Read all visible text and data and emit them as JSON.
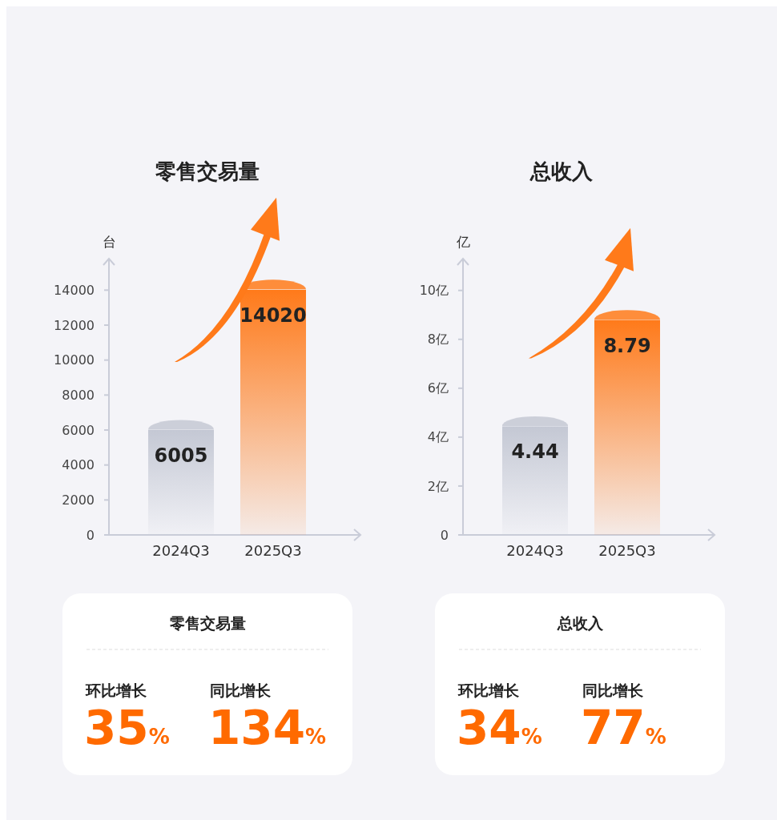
{
  "chart_data": [
    {
      "type": "bar",
      "title": "零售交易量",
      "ylabel": "台",
      "categories": [
        "2024Q3",
        "2025Q3"
      ],
      "values": [
        6005,
        14020
      ],
      "colors": [
        "#c4c8d4",
        "#ff7a1a"
      ],
      "ylim": [
        0,
        15800
      ],
      "yticks": [
        0,
        2000,
        4000,
        6000,
        8000,
        10000,
        12000,
        14000
      ],
      "data_labels": true
    },
    {
      "type": "bar",
      "title": "总收入",
      "ylabel": "亿",
      "categories": [
        "2024Q3",
        "2025Q3"
      ],
      "values": [
        4.44,
        8.79
      ],
      "colors": [
        "#c4c8d4",
        "#ff7a1a"
      ],
      "ylim": [
        0,
        11.3
      ],
      "yticks": [
        0,
        {
          "value": 2,
          "label": "2亿"
        },
        {
          "value": 4,
          "label": "4亿"
        },
        {
          "value": 6,
          "label": "6亿"
        },
        {
          "value": 8,
          "label": "8亿"
        },
        {
          "value": 10,
          "label": "10亿"
        }
      ],
      "data_labels": true
    },
    {
      "type": "other",
      "title": "零售交易量",
      "categories": [
        "环比增长",
        "同比增长"
      ],
      "values": [
        35,
        134
      ],
      "value_labels": [
        "35%",
        "134%"
      ]
    },
    {
      "type": "other",
      "title": "总收入",
      "categories": [
        "环比增长",
        "同比增长"
      ],
      "values": [
        34,
        77
      ],
      "value_labels": [
        "34%",
        "77%"
      ]
    }
  ]
}
